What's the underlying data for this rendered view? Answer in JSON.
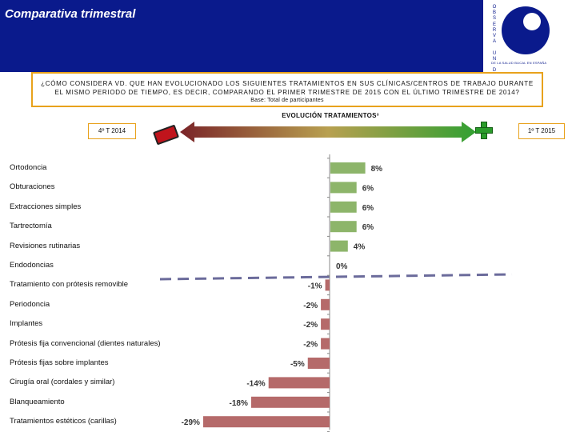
{
  "header": {
    "title": "Comparativa trimestral",
    "logo_letters": [
      "O",
      "B",
      "S",
      "E",
      "R",
      "V",
      "A",
      "",
      "U",
      "N",
      "",
      "D"
    ],
    "logo_caption": "DE LA SALUD BUCAL EN ESPAÑA"
  },
  "question": {
    "text": "¿CÓMO CONSIDERA VD. QUE HAN EVOLUCIONADO LOS SIGUIENTES TRATAMIENTOS EN SUS CLÍNICAS/CENTROS DE TRABAJO DURANTE EL MISMO PERIODO DE TIEMPO, ES DECIR, COMPARANDO EL PRIMER TRIMESTRE DE 2015 CON EL ÚLTIMO TRIMESTRE DE 2014?",
    "base": "Base: Total de participantes"
  },
  "evolution": {
    "title": "EVOLUCIÓN TRATAMIENTOS³",
    "left_label": "4º T 2014",
    "right_label": "1º T 2015",
    "left_icon": "minus-icon",
    "right_icon": "plus-icon"
  },
  "colors": {
    "header_bg": "#0a1a8c",
    "positive": "#8db56a",
    "negative": "#b56a6a",
    "box_border": "#e8a21c",
    "dashed_line": "#6b6b9b"
  },
  "chart_data": {
    "type": "bar",
    "orientation": "horizontal",
    "title": "",
    "categories": [
      "Ortodoncia",
      "Obturaciones",
      "Extracciones simples",
      "Tartrectomía",
      "Revisiones rutinarias",
      "Endodoncias",
      "Tratamiento con prótesis removible",
      "Periodoncia",
      "Implantes",
      "Prótesis fija convencional (dientes naturales)",
      "Prótesis fijas sobre implantes",
      "Cirugía oral (cordales y similar)",
      "Blanqueamiento",
      "Tratamientos estéticos (carillas)"
    ],
    "values": [
      8,
      6,
      6,
      6,
      4,
      0,
      -1,
      -2,
      -2,
      -2,
      -5,
      -14,
      -18,
      -29
    ],
    "value_labels": [
      "8%",
      "6%",
      "6%",
      "6%",
      "4%",
      "0%",
      "-1%",
      "-2%",
      "-2%",
      "-2%",
      "-5%",
      "-14%",
      "-18%",
      "-29%"
    ],
    "xlim": [
      -29,
      29
    ],
    "grid": false,
    "legend": "none"
  }
}
